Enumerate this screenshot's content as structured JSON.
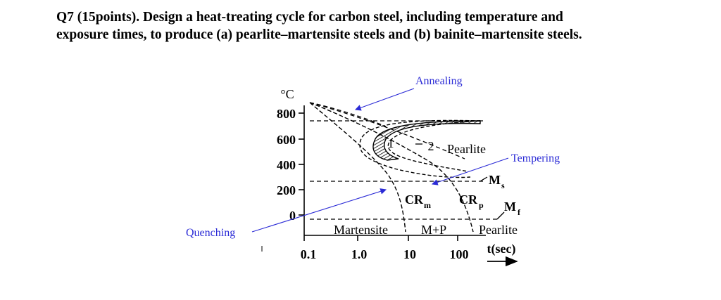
{
  "question": {
    "line1": "Q7 (15points). Design a heat-treating cycle for carbon steel, including temperature and",
    "line2": "exposure times, to produce (a) pearlite–martensite steels and (b) bainite–martensite steels."
  },
  "diagram": {
    "y_unit": "°C",
    "y_ticks": [
      "800",
      "600",
      "400",
      "200",
      "0"
    ],
    "x_ticks": [
      "0.1",
      "1.0",
      "10",
      "100"
    ],
    "x_axis_label": "t(sec)",
    "curve_labels": {
      "one": "1",
      "two": "2"
    },
    "region_labels": {
      "pearlite_upper": "Pearlite",
      "ms": "M",
      "ms_sub": "s",
      "mf": "M",
      "mf_sub": "f",
      "cr_m": "CR",
      "cr_m_sub": "m",
      "cr_p": "CR",
      "cr_p_sub": "p",
      "martensite": "Martensite",
      "m_plus_p": "M+P",
      "pearlite_lower": "Pearlite"
    },
    "annotations": {
      "annealing": "Annealing",
      "tempering": "Tempering",
      "quenching": "Quenching"
    },
    "colors": {
      "annotation": "#2b2bd6",
      "ink": "#000000"
    }
  }
}
